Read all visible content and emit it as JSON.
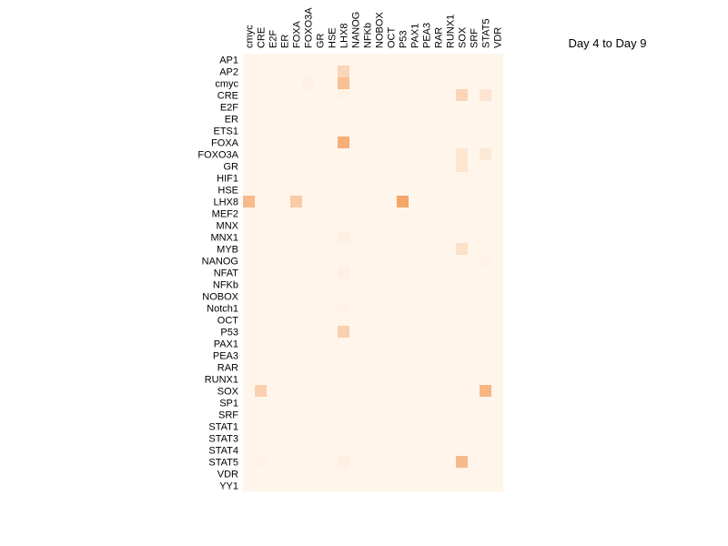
{
  "chart_data": {
    "type": "heatmap",
    "title": "Day 4 to Day 9",
    "columns": [
      "cmyc",
      "CRE",
      "E2F",
      "ER",
      "FOXA",
      "FOXO3A",
      "GR",
      "HSE",
      "LHX8",
      "NANOG",
      "NFKb",
      "NOBOX",
      "OCT",
      "P53",
      "PAX1",
      "PEA3",
      "RAR",
      "RUNX1",
      "SOX",
      "SRF",
      "STAT5",
      "VDR"
    ],
    "rows": [
      "AP1",
      "AP2",
      "cmyc",
      "CRE",
      "E2F",
      "ER",
      "ETS1",
      "FOXA",
      "FOXO3A",
      "GR",
      "HIF1",
      "HSE",
      "LHX8",
      "MEF2",
      "MNX",
      "MNX1",
      "MYB",
      "NANOG",
      "NFAT",
      "NFKb",
      "NOBOX",
      "Notch1",
      "OCT",
      "P53",
      "PAX1",
      "PEA3",
      "RAR",
      "RUNX1",
      "SOX",
      "SP1",
      "SRF",
      "STAT1",
      "STAT3",
      "STAT4",
      "STAT5",
      "VDR",
      "YY1"
    ],
    "values": [
      [
        0,
        0,
        0,
        0,
        0,
        0,
        0,
        0,
        0,
        0,
        0,
        0,
        0,
        0,
        0,
        0,
        0,
        0,
        0,
        0,
        0,
        0
      ],
      [
        0,
        0,
        0,
        0,
        0,
        0,
        0,
        0,
        0.3,
        0,
        0,
        0,
        0,
        0,
        0,
        0,
        0,
        0,
        0,
        0,
        0,
        0
      ],
      [
        0,
        0,
        0,
        0,
        0,
        0.05,
        0,
        0,
        0.5,
        0,
        0,
        0,
        0,
        0,
        0,
        0,
        0,
        0,
        0,
        0,
        0,
        0
      ],
      [
        0,
        0,
        0,
        0,
        0,
        0,
        0,
        0,
        0.03,
        0,
        0,
        0,
        0,
        0,
        0,
        0,
        0,
        0,
        0.3,
        0,
        0.15,
        0
      ],
      [
        0,
        0,
        0,
        0,
        0,
        0,
        0,
        0,
        0,
        0,
        0,
        0,
        0,
        0,
        0,
        0,
        0,
        0,
        0,
        0,
        0,
        0
      ],
      [
        0,
        0,
        0,
        0,
        0,
        0,
        0,
        0,
        0,
        0,
        0,
        0,
        0,
        0,
        0,
        0,
        0,
        0,
        0,
        0,
        0,
        0
      ],
      [
        0,
        0,
        0,
        0,
        0,
        0,
        0,
        0,
        0,
        0,
        0,
        0,
        0,
        0,
        0,
        0,
        0,
        0,
        0,
        0,
        0,
        0
      ],
      [
        0,
        0,
        0,
        0,
        0,
        0,
        0,
        0,
        0.65,
        0,
        0,
        0,
        0,
        0,
        0,
        0,
        0,
        0,
        0,
        0,
        0,
        0
      ],
      [
        0,
        0,
        0,
        0,
        0,
        0,
        0,
        0,
        0,
        0,
        0,
        0,
        0,
        0,
        0,
        0,
        0,
        0,
        0.15,
        0,
        0.12,
        0
      ],
      [
        0,
        0,
        0,
        0,
        0,
        0,
        0,
        0,
        0,
        0,
        0,
        0,
        0,
        0,
        0,
        0,
        0,
        0,
        0.15,
        0,
        0,
        0
      ],
      [
        0,
        0,
        0,
        0,
        0,
        0,
        0,
        0,
        0,
        0,
        0,
        0,
        0,
        0,
        0,
        0,
        0,
        0,
        0,
        0,
        0,
        0
      ],
      [
        0,
        0,
        0,
        0,
        0,
        0,
        0,
        0,
        0,
        0,
        0,
        0,
        0,
        0,
        0,
        0,
        0,
        0,
        0,
        0,
        0,
        0
      ],
      [
        0.55,
        0,
        0,
        0,
        0.4,
        0,
        0,
        0,
        0,
        0,
        0,
        0,
        0,
        0.75,
        0,
        0,
        0,
        0,
        0,
        0,
        0,
        0
      ],
      [
        0,
        0,
        0,
        0,
        0,
        0,
        0,
        0,
        0,
        0,
        0,
        0,
        0,
        0,
        0,
        0,
        0,
        0,
        0,
        0,
        0,
        0
      ],
      [
        0,
        0,
        0,
        0,
        0,
        0,
        0,
        0,
        0,
        0,
        0,
        0,
        0,
        0,
        0,
        0,
        0,
        0,
        0,
        0,
        0,
        0
      ],
      [
        0,
        0,
        0,
        0,
        0,
        0,
        0,
        0,
        0.05,
        0,
        0,
        0,
        0,
        0,
        0,
        0,
        0,
        0,
        0,
        0,
        0,
        0
      ],
      [
        0,
        0,
        0,
        0,
        0,
        0,
        0,
        0,
        0,
        0,
        0,
        0,
        0,
        0,
        0,
        0,
        0,
        0,
        0.2,
        0,
        0,
        0
      ],
      [
        0,
        0,
        0,
        0,
        0,
        0,
        0,
        0,
        0,
        0,
        0,
        0,
        0,
        0,
        0,
        0,
        0,
        0,
        0,
        0,
        0.03,
        0
      ],
      [
        0,
        0,
        0,
        0,
        0,
        0,
        0,
        0,
        0.05,
        0,
        0,
        0,
        0,
        0,
        0,
        0,
        0,
        0,
        0,
        0,
        0,
        0
      ],
      [
        0,
        0,
        0,
        0,
        0,
        0,
        0,
        0,
        0,
        0,
        0,
        0,
        0,
        0,
        0,
        0,
        0,
        0,
        0,
        0,
        0,
        0
      ],
      [
        0,
        0,
        0,
        0,
        0,
        0,
        0,
        0,
        0,
        0,
        0,
        0,
        0,
        0,
        0,
        0,
        0,
        0,
        0,
        0,
        0,
        0
      ],
      [
        0,
        0,
        0,
        0,
        0,
        0,
        0,
        0,
        0.03,
        0,
        0,
        0,
        0,
        0,
        0,
        0,
        0,
        0,
        0,
        0,
        0,
        0
      ],
      [
        0,
        0,
        0,
        0,
        0,
        0,
        0,
        0,
        0,
        0,
        0,
        0,
        0,
        0,
        0,
        0,
        0,
        0,
        0,
        0,
        0,
        0
      ],
      [
        0,
        0,
        0,
        0,
        0,
        0,
        0,
        0,
        0.35,
        0,
        0,
        0,
        0,
        0,
        0,
        0,
        0,
        0,
        0,
        0,
        0,
        0
      ],
      [
        0,
        0,
        0,
        0,
        0,
        0,
        0,
        0,
        0,
        0,
        0,
        0,
        0,
        0,
        0,
        0,
        0,
        0,
        0,
        0,
        0,
        0
      ],
      [
        0,
        0,
        0,
        0,
        0,
        0,
        0,
        0,
        0,
        0,
        0,
        0,
        0,
        0,
        0,
        0,
        0,
        0,
        0,
        0,
        0,
        0
      ],
      [
        0,
        0,
        0,
        0,
        0,
        0,
        0,
        0,
        0,
        0,
        0,
        0,
        0,
        0,
        0,
        0,
        0,
        0,
        0,
        0,
        0,
        0
      ],
      [
        0,
        0,
        0,
        0,
        0,
        0,
        0,
        0,
        0,
        0,
        0,
        0,
        0,
        0,
        0,
        0,
        0,
        0,
        0,
        0,
        0,
        0
      ],
      [
        0,
        0.35,
        0,
        0,
        0,
        0,
        0,
        0,
        0,
        0,
        0,
        0,
        0,
        0,
        0,
        0,
        0,
        0,
        0,
        0,
        0.6,
        0
      ],
      [
        0,
        0,
        0,
        0,
        0,
        0,
        0,
        0,
        0,
        0,
        0,
        0,
        0,
        0,
        0,
        0,
        0,
        0,
        0,
        0,
        0,
        0
      ],
      [
        0,
        0,
        0,
        0,
        0,
        0,
        0,
        0,
        0,
        0,
        0,
        0,
        0,
        0,
        0,
        0,
        0,
        0,
        0,
        0,
        0,
        0
      ],
      [
        0,
        0,
        0,
        0,
        0,
        0,
        0,
        0,
        0,
        0,
        0,
        0,
        0,
        0,
        0,
        0,
        0,
        0,
        0,
        0,
        0,
        0
      ],
      [
        0,
        0,
        0,
        0,
        0,
        0,
        0,
        0,
        0,
        0,
        0,
        0,
        0,
        0,
        0,
        0,
        0,
        0,
        0,
        0,
        0,
        0
      ],
      [
        0,
        0,
        0,
        0,
        0,
        0,
        0,
        0,
        0,
        0,
        0,
        0,
        0,
        0,
        0,
        0,
        0,
        0,
        0,
        0,
        0,
        0
      ],
      [
        0,
        0.03,
        0,
        0,
        0,
        0,
        0,
        0,
        0.05,
        0,
        0,
        0,
        0,
        0,
        0,
        0,
        0,
        0,
        0.55,
        0,
        0,
        0
      ],
      [
        0,
        0,
        0,
        0,
        0,
        0,
        0,
        0,
        0,
        0,
        0,
        0,
        0,
        0,
        0,
        0,
        0,
        0,
        0,
        0,
        0,
        0
      ],
      [
        0,
        0,
        0,
        0,
        0,
        0,
        0,
        0,
        0,
        0,
        0,
        0,
        0,
        0,
        0,
        0,
        0,
        0,
        0,
        0,
        0,
        0
      ]
    ],
    "value_range": [
      0,
      1
    ],
    "colors": {
      "low": "#fff5eb",
      "high": "#f08a3c"
    }
  }
}
